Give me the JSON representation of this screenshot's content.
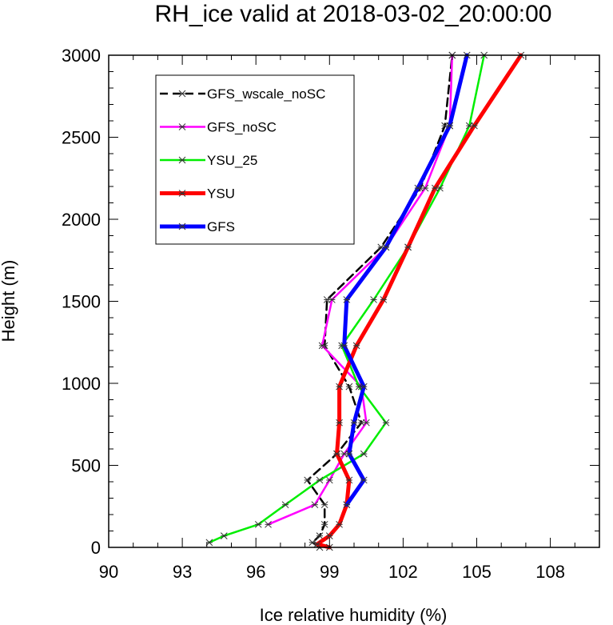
{
  "chart_data": {
    "type": "line",
    "title": "RH_ice valid at 2018-03-02_20:00:00",
    "xlabel": "Ice relative humidity (%)",
    "ylabel": "Height (m)",
    "xlim": [
      90,
      110
    ],
    "ylim": [
      0,
      3000
    ],
    "xticks": [
      90,
      93,
      96,
      99,
      102,
      105,
      108
    ],
    "yticks": [
      0,
      500,
      1000,
      1500,
      2000,
      2500,
      3000
    ],
    "grid": false,
    "legend_position": "top-left",
    "series": [
      {
        "name": "GFS_wscale_noSC",
        "color": "#000000",
        "dash": "dashed",
        "width": 2.5,
        "points": [
          [
            98.6,
            0
          ],
          [
            98.3,
            30
          ],
          [
            98.6,
            70
          ],
          [
            98.8,
            140
          ],
          [
            98.8,
            260
          ],
          [
            98.1,
            410
          ],
          [
            99.3,
            570
          ],
          [
            100.3,
            760
          ],
          [
            99.8,
            980
          ],
          [
            98.8,
            1230
          ],
          [
            98.9,
            1510
          ],
          [
            101.1,
            1830
          ],
          [
            102.7,
            2190
          ],
          [
            103.7,
            2570
          ],
          [
            104.0,
            3000
          ]
        ]
      },
      {
        "name": "GFS_noSC",
        "color": "#ff00ff",
        "dash": "solid",
        "width": 2.5,
        "points": [
          [
            96.5,
            140
          ],
          [
            98.4,
            260
          ],
          [
            99.0,
            410
          ],
          [
            99.6,
            570
          ],
          [
            100.5,
            760
          ],
          [
            100.3,
            980
          ],
          [
            98.7,
            1230
          ],
          [
            99.1,
            1510
          ],
          [
            101.3,
            1830
          ],
          [
            102.9,
            2190
          ],
          [
            103.9,
            2570
          ],
          [
            104.0,
            3000
          ]
        ]
      },
      {
        "name": "YSU_25",
        "color": "#00ee00",
        "dash": "solid",
        "width": 2.5,
        "points": [
          [
            94.1,
            30
          ],
          [
            94.7,
            70
          ],
          [
            96.1,
            140
          ],
          [
            97.2,
            260
          ],
          [
            98.6,
            410
          ],
          [
            100.4,
            570
          ],
          [
            101.3,
            760
          ],
          [
            100.2,
            980
          ],
          [
            99.5,
            1230
          ],
          [
            100.8,
            1510
          ],
          [
            102.2,
            1830
          ],
          [
            103.5,
            2190
          ],
          [
            104.7,
            2570
          ],
          [
            105.3,
            3000
          ]
        ]
      },
      {
        "name": "YSU",
        "color": "#ff0000",
        "dash": "solid",
        "width": 5,
        "points": [
          [
            99.0,
            0
          ],
          [
            98.5,
            20
          ],
          [
            99.0,
            70
          ],
          [
            99.4,
            140
          ],
          [
            99.7,
            260
          ],
          [
            99.8,
            410
          ],
          [
            99.3,
            570
          ],
          [
            99.4,
            760
          ],
          [
            99.4,
            980
          ],
          [
            100.1,
            1230
          ],
          [
            101.2,
            1510
          ],
          [
            102.2,
            1830
          ],
          [
            103.3,
            2190
          ],
          [
            104.9,
            2570
          ],
          [
            106.8,
            3000
          ]
        ]
      },
      {
        "name": "GFS",
        "color": "#0000ff",
        "dash": "solid",
        "width": 5,
        "points": [
          [
            99.7,
            260
          ],
          [
            100.4,
            410
          ],
          [
            99.8,
            570
          ],
          [
            100.0,
            760
          ],
          [
            100.4,
            980
          ],
          [
            99.6,
            1230
          ],
          [
            99.7,
            1510
          ],
          [
            101.3,
            1830
          ],
          [
            102.6,
            2190
          ],
          [
            103.9,
            2570
          ],
          [
            104.6,
            3000
          ]
        ]
      }
    ]
  }
}
